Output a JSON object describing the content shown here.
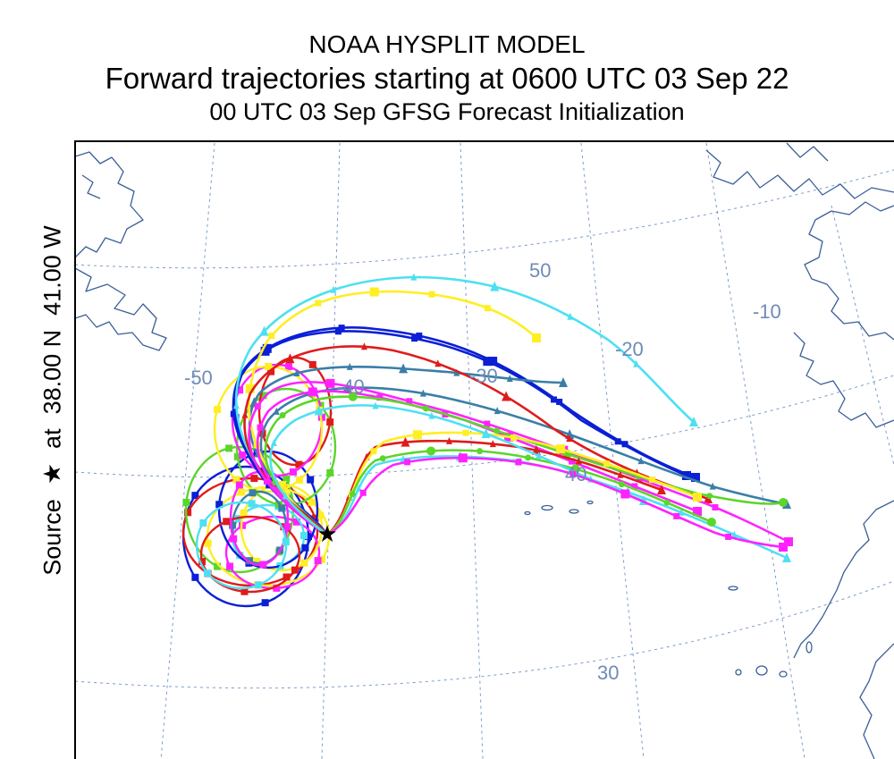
{
  "title": {
    "line1": "NOAA HYSPLIT MODEL",
    "line2": "Forward trajectories starting at 0600 UTC 03 Sep 22",
    "line3": "00 UTC 03 Sep    GFSG  Forecast Initialization"
  },
  "source_label": {
    "prefix": "Source",
    "star": "★",
    "at": "at",
    "lat": "38.00 N",
    "lon": "41.00 W"
  },
  "grid_labels": [
    "50",
    "-10",
    "-20",
    "-50",
    "-30",
    "40",
    "30",
    "-40"
  ],
  "colors": {
    "grid": "#7b9ccb",
    "coast": "#3a5f97",
    "series": [
      "#0a1fd6",
      "#e01b1b",
      "#ff22ff",
      "#5bd62a",
      "#ffee22",
      "#4de0f2",
      "#3a7ea8"
    ]
  },
  "map": {
    "source_point": {
      "lat": 38.0,
      "lon": -41.0
    }
  }
}
